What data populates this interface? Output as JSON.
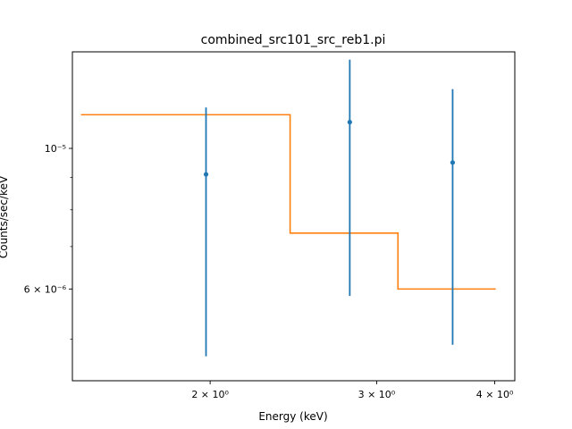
{
  "chart_data": {
    "type": "scatter",
    "title": "combined_src101_src_reb1.pi",
    "xlabel": "Energy (keV)",
    "ylabel": "Counts/sec/keV",
    "xscale": "log",
    "yscale": "log",
    "xlim": [
      1.43,
      4.2
    ],
    "ylim": [
      4.3e-06,
      1.42e-05
    ],
    "x_ticks": [
      {
        "value": 2,
        "label": "2 × 10⁰"
      },
      {
        "value": 3,
        "label": "3 × 10⁰"
      },
      {
        "value": 4,
        "label": "4 × 10⁰"
      }
    ],
    "y_ticks": [
      {
        "value": 1e-05,
        "label": "10⁻⁵"
      },
      {
        "value": 6e-06,
        "label": "6 × 10⁻⁶"
      }
    ],
    "y_minor_ticks": [
      5e-06,
      7e-06,
      8e-06,
      9e-06
    ],
    "grid": false,
    "data_series": {
      "color": "#1f77b4",
      "points": [
        {
          "x": 1.98,
          "y": 9.1e-06,
          "ylow": 4.7e-06,
          "yhigh": 1.16e-05
        },
        {
          "x": 2.81,
          "y": 1.1e-05,
          "ylow": 5.85e-06,
          "yhigh": 1.38e-05
        },
        {
          "x": 3.61,
          "y": 9.5e-06,
          "ylow": 4.9e-06,
          "yhigh": 1.24e-05
        }
      ]
    },
    "model_series": {
      "color": "#ff7f0e",
      "steps": [
        {
          "x0": 1.46,
          "x1": 2.43,
          "y": 1.13e-05
        },
        {
          "x0": 2.43,
          "x1": 3.16,
          "y": 7.35e-06
        },
        {
          "x0": 3.16,
          "x1": 4.01,
          "y": 6e-06
        }
      ]
    }
  }
}
